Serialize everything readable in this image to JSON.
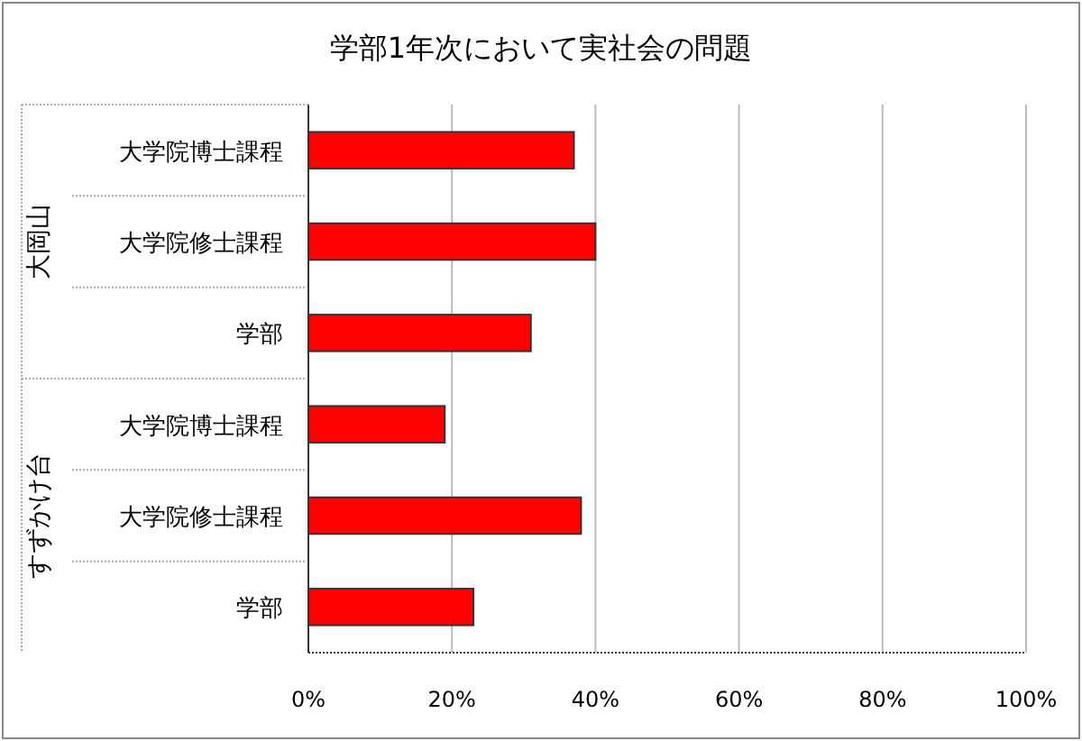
{
  "chart_data": {
    "type": "bar",
    "orientation": "horizontal",
    "title": "学部1年次において実社会の問題",
    "categories": [
      "大学院博士課程",
      "大学院修士課程",
      "学部",
      "大学院博士課程",
      "大学院修士課程",
      "学部"
    ],
    "annotations": [
      "大岡山",
      "すずかけ台"
    ],
    "values": [
      37,
      40,
      31,
      19,
      38,
      23
    ],
    "color": "#ff0000",
    "xlim": [
      0,
      100
    ],
    "xticks": [
      {
        "value": 0,
        "label": "0%"
      },
      {
        "value": 20,
        "label": "20%"
      },
      {
        "value": 40,
        "label": "40%"
      },
      {
        "value": 60,
        "label": "60%"
      },
      {
        "value": 80,
        "label": "80%"
      },
      {
        "value": 100,
        "label": "100%"
      }
    ],
    "grid": "x"
  }
}
